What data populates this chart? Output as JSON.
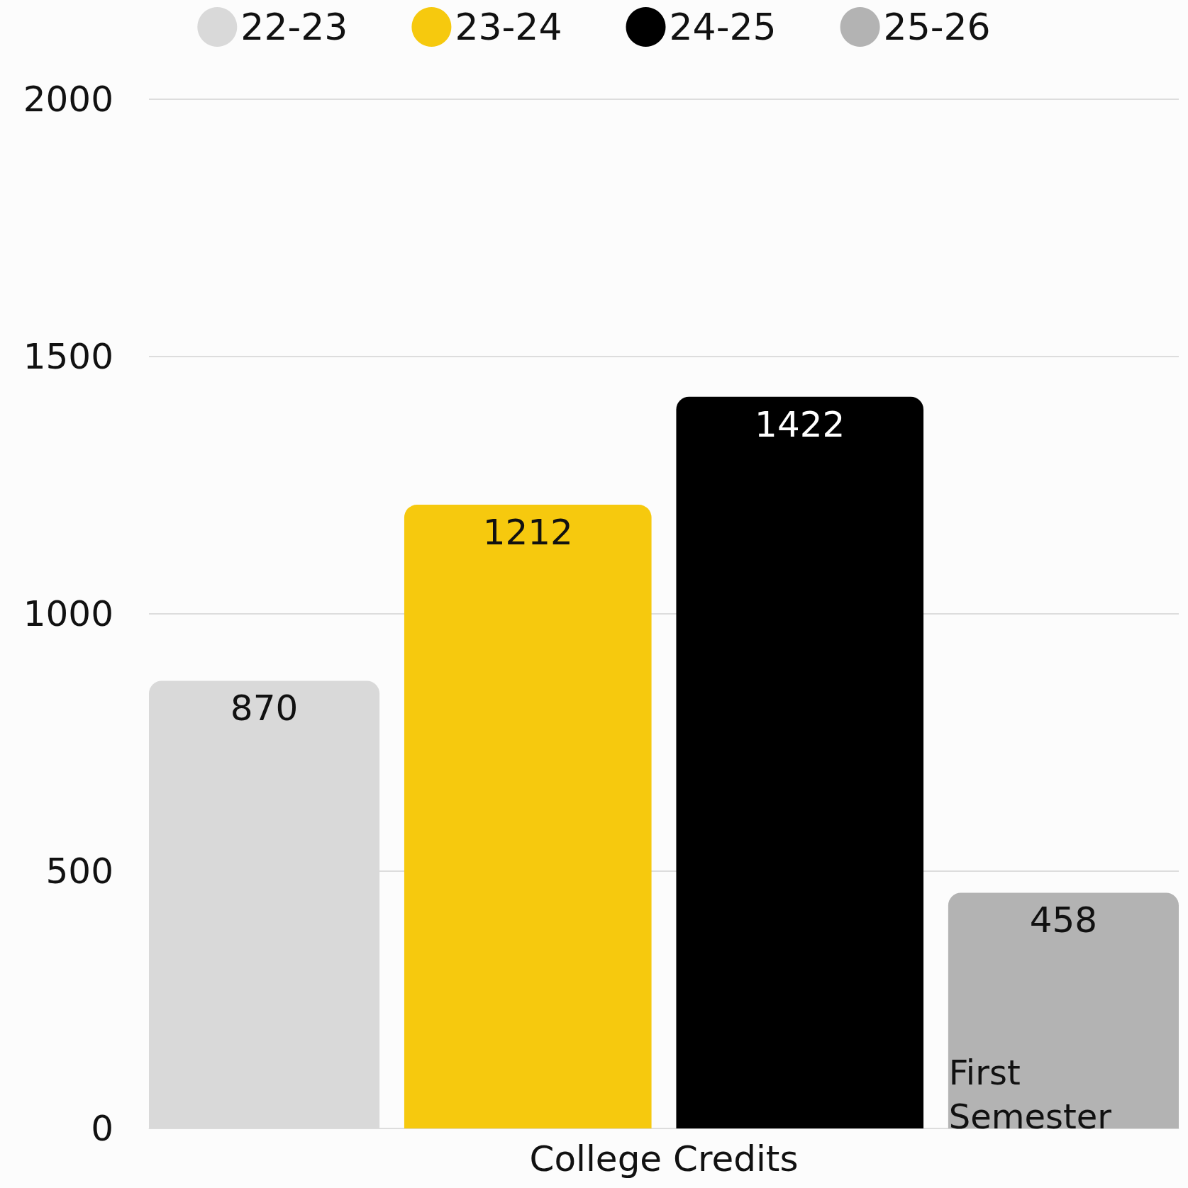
{
  "chart_data": {
    "type": "bar",
    "categories": [
      "College Credits"
    ],
    "series": [
      {
        "name": "22-23",
        "color": "#d9d9d9",
        "values": [
          870
        ]
      },
      {
        "name": "23-24",
        "color": "#f6c90e",
        "values": [
          1212
        ]
      },
      {
        "name": "24-25",
        "color": "#000000",
        "values": [
          1422
        ]
      },
      {
        "name": "25-26",
        "color": "#b3b3b3",
        "values": [
          458
        ]
      }
    ],
    "ylim": [
      0,
      2000
    ],
    "yticks": [
      0,
      500,
      1000,
      1500,
      2000
    ],
    "grid": "y",
    "legend": "top",
    "data_labels": true,
    "annotations": [
      "First Semester"
    ]
  }
}
